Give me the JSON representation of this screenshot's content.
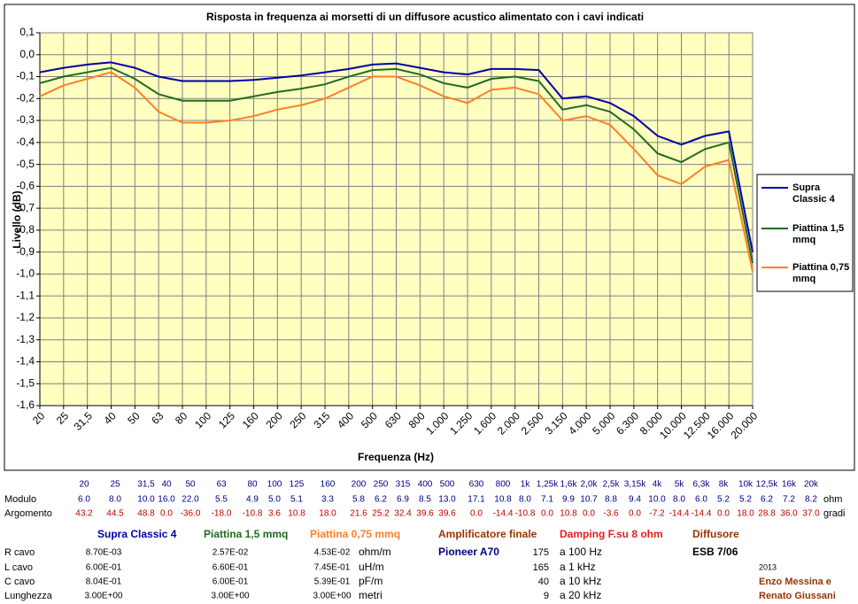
{
  "chart_data": {
    "type": "line",
    "title": "Risposta in frequenza ai morsetti di un diffusore acustico alimentato con i cavi indicati",
    "xlabel": "Frequenza (Hz)",
    "ylabel": "Livello (dB)",
    "categories": [
      "20",
      "25",
      "31,5",
      "40",
      "50",
      "63",
      "80",
      "100",
      "125",
      "160",
      "200",
      "250",
      "315",
      "400",
      "500",
      "630",
      "800",
      "1.000",
      "1.250",
      "1.600",
      "2.000",
      "2.500",
      "3.150",
      "4.000",
      "5.000",
      "6.300",
      "8.000",
      "10.000",
      "12.500",
      "16.000",
      "20.000"
    ],
    "series": [
      {
        "name": "Supra Classic 4",
        "color": "#0000a8",
        "values": [
          -0.08,
          -0.06,
          -0.045,
          -0.035,
          -0.06,
          -0.1,
          -0.12,
          -0.12,
          -0.12,
          -0.115,
          -0.105,
          -0.095,
          -0.08,
          -0.065,
          -0.045,
          -0.04,
          -0.06,
          -0.08,
          -0.09,
          -0.065,
          -0.065,
          -0.07,
          -0.2,
          -0.19,
          -0.22,
          -0.28,
          -0.37,
          -0.41,
          -0.37,
          -0.35,
          -0.9
        ]
      },
      {
        "name": "Piattina 1,5 mmq",
        "color": "#1e6b1e",
        "values": [
          -0.13,
          -0.1,
          -0.08,
          -0.06,
          -0.11,
          -0.18,
          -0.21,
          -0.21,
          -0.21,
          -0.19,
          -0.17,
          -0.155,
          -0.135,
          -0.1,
          -0.07,
          -0.065,
          -0.09,
          -0.13,
          -0.15,
          -0.11,
          -0.1,
          -0.12,
          -0.25,
          -0.23,
          -0.26,
          -0.34,
          -0.45,
          -0.49,
          -0.43,
          -0.4,
          -0.95
        ]
      },
      {
        "name": "Piattina 0,75 mmq",
        "color": "#ff7f27",
        "values": [
          -0.19,
          -0.14,
          -0.11,
          -0.08,
          -0.15,
          -0.26,
          -0.31,
          -0.31,
          -0.3,
          -0.28,
          -0.25,
          -0.23,
          -0.2,
          -0.15,
          -0.1,
          -0.1,
          -0.14,
          -0.19,
          -0.22,
          -0.16,
          -0.15,
          -0.18,
          -0.3,
          -0.28,
          -0.32,
          -0.43,
          -0.55,
          -0.59,
          -0.51,
          -0.48,
          -0.99
        ]
      }
    ],
    "ylim": [
      -1.6,
      0.1
    ],
    "yticks": [
      {
        "value": 0.1,
        "label": "0,1"
      },
      {
        "value": 0,
        "label": "0,0"
      },
      {
        "value": -0.1,
        "label": "-0,1"
      },
      {
        "value": -0.2,
        "label": "-0,2"
      },
      {
        "value": -0.3,
        "label": "-0,3"
      },
      {
        "value": -0.4,
        "label": "-0,4"
      },
      {
        "value": -0.5,
        "label": "-0,5"
      },
      {
        "value": -0.6,
        "label": "-0,6"
      },
      {
        "value": -0.7,
        "label": "-0,7"
      },
      {
        "value": -0.8,
        "label": "-0,8"
      },
      {
        "value": -0.9,
        "label": "-0,9"
      },
      {
        "value": -1,
        "label": "-1,0"
      },
      {
        "value": -1.1,
        "label": "-1,1"
      },
      {
        "value": -1.2,
        "label": "-1,2"
      },
      {
        "value": -1.3,
        "label": "-1,3"
      },
      {
        "value": -1.4,
        "label": "-1,4"
      },
      {
        "value": -1.5,
        "label": "-1,5"
      },
      {
        "value": -1.6,
        "label": "-1,6"
      }
    ],
    "grid": true,
    "legend": "right"
  },
  "table": {
    "frequencies": [
      "20",
      "25",
      "31,5",
      "40",
      "50",
      "63",
      "80",
      "100",
      "125",
      "160",
      "200",
      "250",
      "315",
      "400",
      "500",
      "630",
      "800",
      "1k",
      "1,25k",
      "1,6k",
      "2,0k",
      "2,5k",
      "3,15k",
      "4k",
      "5k",
      "6,3k",
      "8k",
      "10k",
      "12,5k",
      "16k",
      "20k"
    ],
    "rows": [
      {
        "label": "Modulo",
        "unit": "ohm",
        "values": [
          "6.0",
          "8.0",
          "10.0",
          "16.0",
          "22.0",
          "5.5",
          "4.9",
          "5.0",
          "5.1",
          "3.3",
          "5.8",
          "6.2",
          "6.9",
          "8.5",
          "13.0",
          "17.1",
          "10.8",
          "8.0",
          "7.1",
          "9.9",
          "10.7",
          "8.8",
          "9.4",
          "10.0",
          "8.0",
          "6.0",
          "5.2",
          "5.2",
          "6.2",
          "7.2",
          "8.2"
        ]
      },
      {
        "label": "Argomento",
        "unit": "gradi",
        "values": [
          "43.2",
          "44.5",
          "48.8",
          "0.0",
          "-36.0",
          "-18.0",
          "-10.8",
          "3.6",
          "10.8",
          "18.0",
          "21.6",
          "25.2",
          "32.4",
          "39.6",
          "39.6",
          "0.0",
          "-14.4",
          "-10.8",
          "0.0",
          "10.8",
          "0.0",
          "-3.6",
          "0.0",
          "-7.2",
          "-14.4",
          "-14.4",
          "0.0",
          "18.0",
          "28.8",
          "36.0",
          "37.0"
        ]
      }
    ]
  },
  "cables": {
    "headers": [
      "Supra Classic 4",
      "Piattina 1,5 mmq",
      "Piattina 0,75 mmq"
    ],
    "rows": [
      {
        "label": "R cavo",
        "values": [
          "8.70E-03",
          "2.57E-02",
          "4.53E-02"
        ],
        "unit": "ohm/m"
      },
      {
        "label": "L cavo",
        "values": [
          "6.00E-01",
          "6.60E-01",
          "7.45E-01"
        ],
        "unit": "uH/m"
      },
      {
        "label": "C cavo",
        "values": [
          "8.04E-01",
          "6.00E-01",
          "5.39E-01"
        ],
        "unit": "pF/m"
      },
      {
        "label": "Lunghezza",
        "values": [
          "3.00E+00",
          "3.00E+00",
          "3.00E+00"
        ],
        "unit": "metri"
      }
    ]
  },
  "amplifier": {
    "title": "Amplificatore finale",
    "model": "Pioneer A70"
  },
  "damping": {
    "title": "Damping F.su 8 ohm",
    "rows": [
      {
        "value": "175",
        "label": "a 100 Hz"
      },
      {
        "value": "165",
        "label": "a 1 kHz"
      },
      {
        "value": "40",
        "label": "a 10 kHz"
      },
      {
        "value": "9",
        "label": "a 20 kHz"
      }
    ]
  },
  "speaker": {
    "title": "Diffusore",
    "model": "ESB 7/06"
  },
  "credits": {
    "year": "2013",
    "authors": [
      "Enzo Messina e",
      "Renato Giussani"
    ]
  }
}
